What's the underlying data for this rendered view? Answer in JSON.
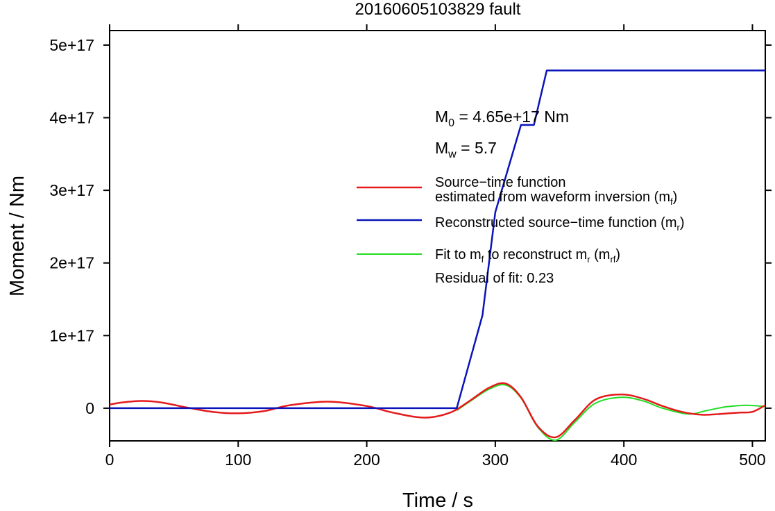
{
  "chart_data": {
    "type": "line",
    "title": "20160605103829 fault",
    "xlabel": "Time / s",
    "ylabel": "Moment / Nm",
    "xlim": [
      0,
      510
    ],
    "ylim": [
      -4.5e+16,
      5.2e+17
    ],
    "x_ticks": [
      {
        "value": 0,
        "label": "0"
      },
      {
        "value": 100,
        "label": "100"
      },
      {
        "value": 200,
        "label": "200"
      },
      {
        "value": 300,
        "label": "300"
      },
      {
        "value": 400,
        "label": "400"
      },
      {
        "value": 500,
        "label": "500"
      }
    ],
    "y_ticks": [
      {
        "value": 0,
        "label": "0"
      },
      {
        "value": 1e+17,
        "label": "1e+17"
      },
      {
        "value": 2e+17,
        "label": "2e+17"
      },
      {
        "value": 3e+17,
        "label": "3e+17"
      },
      {
        "value": 4e+17,
        "label": "4e+17"
      },
      {
        "value": 5e+17,
        "label": "5e+17"
      }
    ],
    "grid": false,
    "annotations": {
      "m0": {
        "prefix": "M",
        "sub": "0",
        "text": " = 4.65e+17 Nm"
      },
      "mw": {
        "prefix": "M",
        "sub": "w",
        "text": " = 5.7"
      },
      "residual": "Residual of fit: 0.23"
    },
    "legend": {
      "position": "right",
      "entries": [
        {
          "series": "mf",
          "line1": "Source−time function",
          "line2": "estimated from waveform inversion (m",
          "line2_sub": "f",
          "line2_end": ")"
        },
        {
          "series": "mr",
          "line1": "Reconstructed source−time function (m",
          "line1_sub": "r",
          "line1_end": ")"
        },
        {
          "series": "mrf",
          "line1": "Fit to m",
          "line1_sub": "f",
          "line1_mid": " to reconstruct m",
          "line1_sub2": "r",
          "line1_mid2": " (m",
          "line1_sub3": "rf",
          "line1_end": ")"
        }
      ]
    },
    "series": [
      {
        "id": "mf",
        "color": "#e41a1c",
        "x": [
          0,
          10,
          25,
          40,
          60,
          80,
          100,
          120,
          140,
          170,
          200,
          220,
          245,
          265,
          280,
          295,
          308,
          320,
          333,
          347,
          362,
          378,
          398,
          415,
          430,
          445,
          460,
          475,
          490,
          500,
          510
        ],
        "y": [
          5000000000000000.0,
          8000000000000000.0,
          1e+16,
          8000000000000000.0,
          1000000000000000.0,
          -5000000000000000.0,
          -7000000000000000.0,
          -4000000000000000.0,
          4000000000000000.0,
          9000000000000000.0,
          3000000000000000.0,
          -6000000000000000.0,
          -1.3e+16,
          -6000000000000000.0,
          1e+16,
          2.8e+16,
          3.4e+16,
          1.5e+16,
          -2.5e+16,
          -4e+16,
          -1.6e+16,
          1.2e+16,
          1.9e+16,
          1.3e+16,
          3000000000000000.0,
          -5000000000000000.0,
          -9000000000000000.0,
          -8000000000000000.0,
          -6000000000000000.0,
          -5000000000000000.0,
          4000000000000000.0
        ]
      },
      {
        "id": "mr",
        "color": "#0a14b8",
        "x": [
          0,
          270,
          290,
          300,
          320,
          325,
          330,
          340,
          510
        ],
        "y": [
          0,
          0,
          1.28e+17,
          2.7e+17,
          3.9e+17,
          3.9e+17,
          3.9e+17,
          4.65e+17,
          4.65e+17
        ]
      },
      {
        "id": "mrf",
        "color": "#22dd22",
        "x": [
          270,
          280,
          295,
          308,
          320,
          333,
          347,
          362,
          378,
          398,
          415,
          430,
          450,
          465,
          480,
          495,
          505,
          510
        ],
        "y": [
          -3000000000000000.0,
          9000000000000000.0,
          2.6e+16,
          3.2e+16,
          1.4e+16,
          -2.6e+16,
          -4.4e+16,
          -1.9e+16,
          7000000000000000.0,
          1.5e+16,
          1e+16,
          0.0,
          -8000000000000000.0,
          -3000000000000000.0,
          2000000000000000.0,
          4000000000000000.0,
          3000000000000000.0,
          2000000000000000.0
        ]
      }
    ]
  }
}
